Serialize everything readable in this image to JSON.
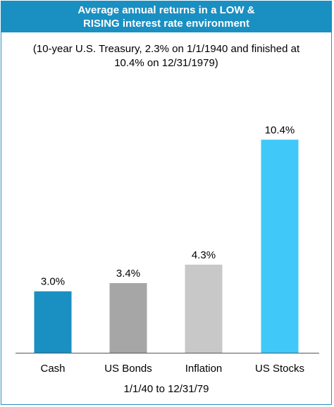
{
  "title": {
    "line1": "Average annual returns in a LOW &",
    "line2": "RISING interest rate environment"
  },
  "subtitle": {
    "line1": "(10-year U.S. Treasury, 2.3% on 1/1/1940 and finished at",
    "line2": "10.4% on 12/31/1979)"
  },
  "colors": {
    "title_bar": "#1a8fc2",
    "border": "#2a8fbf",
    "axis": "#555555"
  },
  "chart_data": {
    "type": "bar",
    "title": "Average annual returns in a LOW & RISING interest rate environment",
    "subtitle": "(10-year U.S. Treasury, 2.3% on 1/1/1940 and finished at 10.4% on 12/31/1979)",
    "xlabel": "1/1/40 to 12/31/79",
    "ylabel": "",
    "ylim": [
      0,
      11.5
    ],
    "grid": false,
    "categories": [
      "Cash",
      "US Bonds",
      "Inflation",
      "US Stocks"
    ],
    "values": [
      3.0,
      3.4,
      4.3,
      10.4
    ],
    "data_labels": [
      "3.0%",
      "3.4%",
      "4.3%",
      "10.4%"
    ],
    "bar_colors": [
      "#1a8fc2",
      "#a6a6a6",
      "#c8c8c8",
      "#40c8f8"
    ]
  }
}
